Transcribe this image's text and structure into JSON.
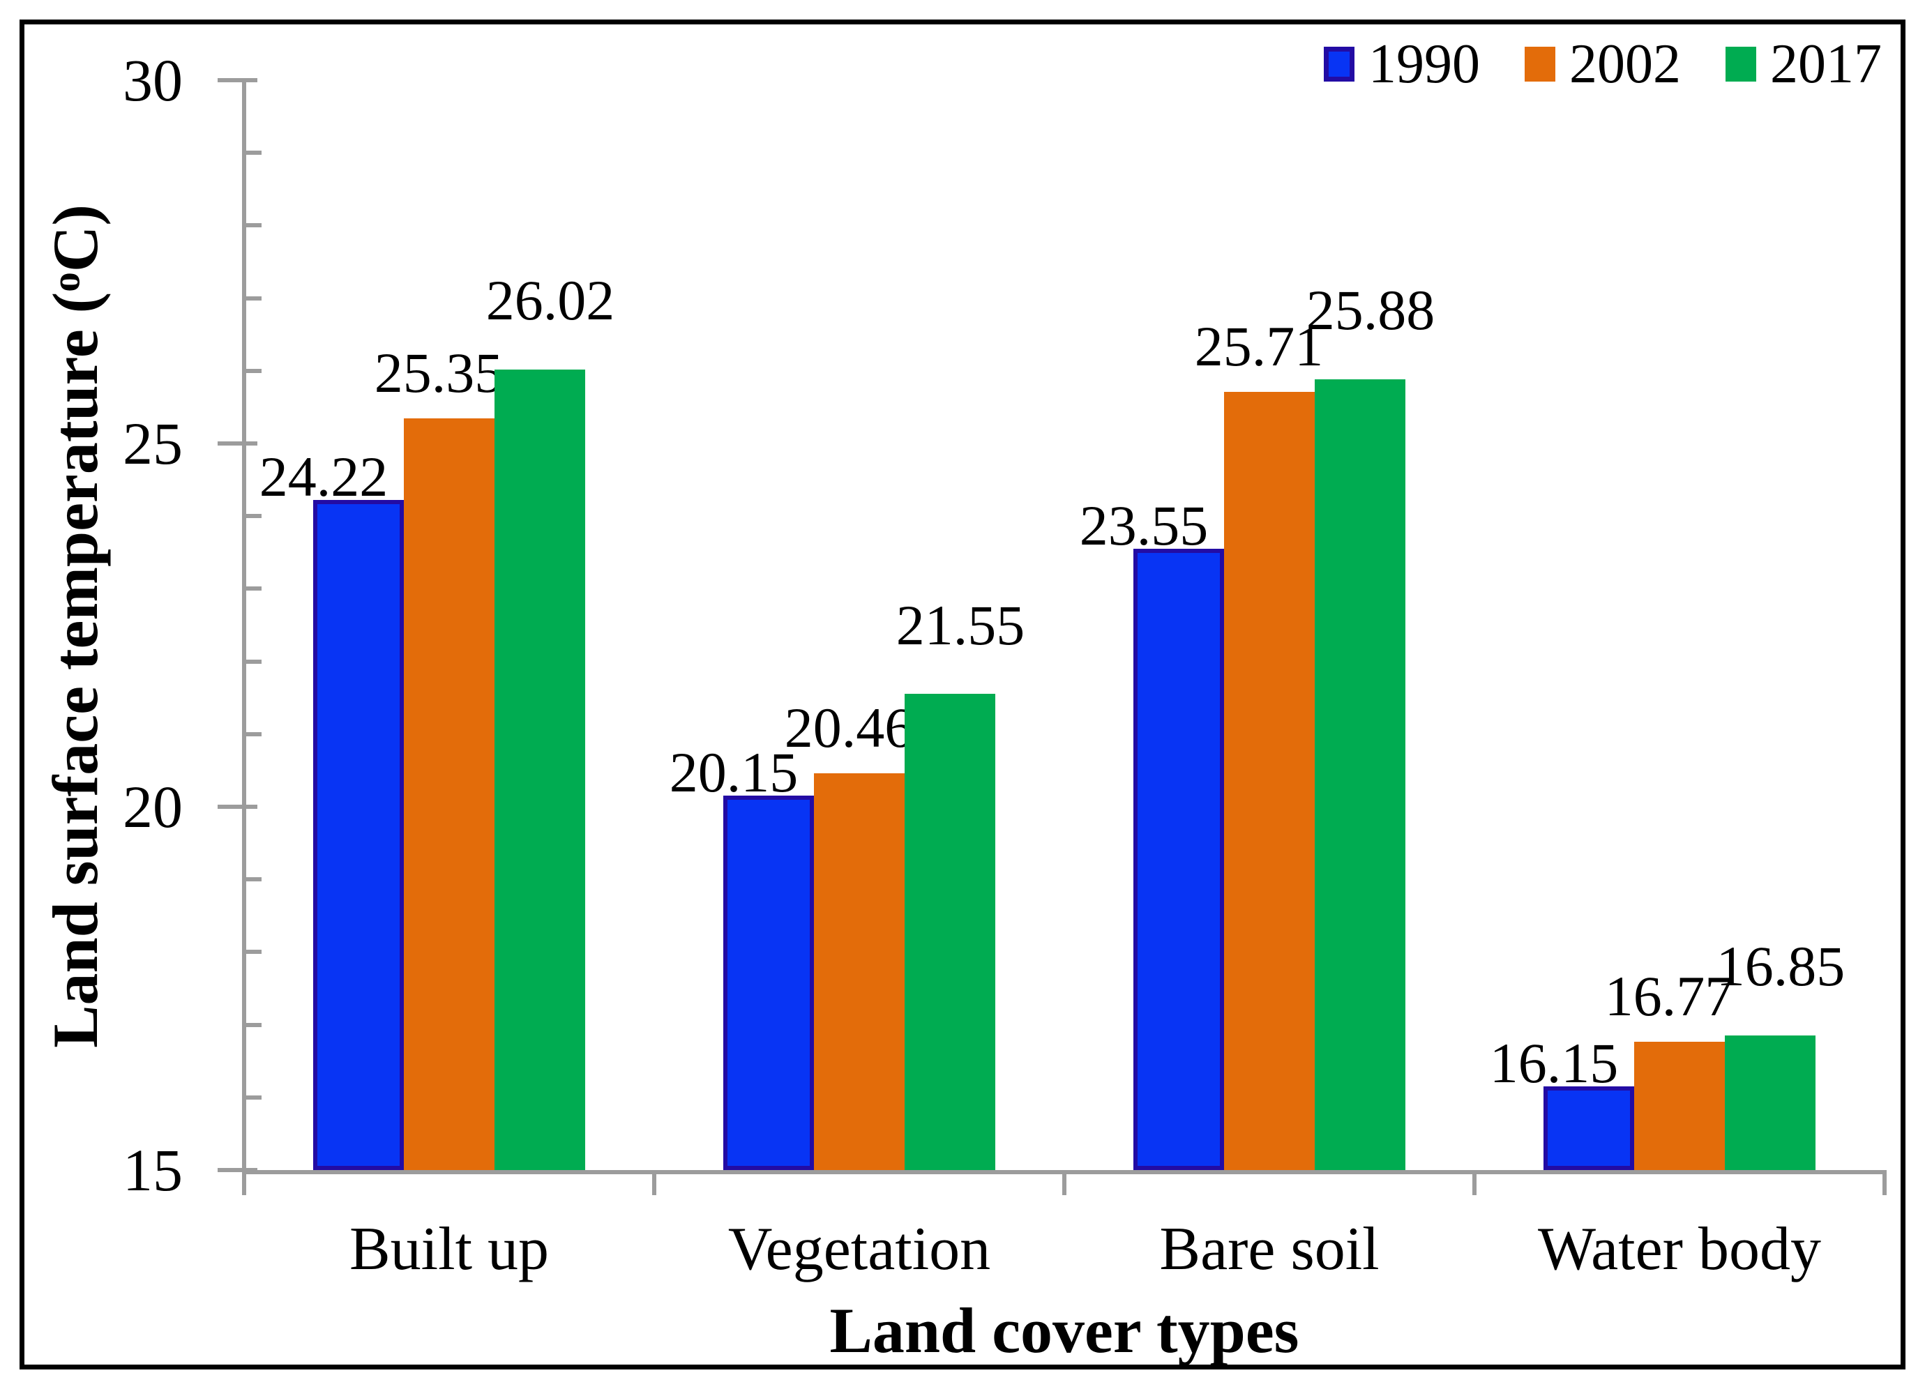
{
  "chart_data": {
    "type": "bar",
    "title": "",
    "categories": [
      "Built up",
      "Vegetation",
      "Bare soil",
      "Water body"
    ],
    "series": [
      {
        "name": "1990",
        "color": "#0834F4",
        "border_color": "#230CA4",
        "values": [
          24.22,
          20.15,
          23.55,
          16.15
        ]
      },
      {
        "name": "2002",
        "color": "#E36C0A",
        "border_color": null,
        "values": [
          25.35,
          20.46,
          25.71,
          16.77
        ]
      },
      {
        "name": "2017",
        "color": "#00AC51",
        "border_color": null,
        "values": [
          26.02,
          21.55,
          25.88,
          16.85
        ]
      }
    ],
    "data_labels": [
      [
        "24.22",
        "20.15",
        "23.55",
        "16.15"
      ],
      [
        "25.35",
        "20.46",
        "25.71",
        "16.77"
      ],
      [
        "26.02",
        "21.55",
        "25.88",
        "16.85"
      ]
    ],
    "xlabel": "Land cover types",
    "ylabel": {
      "prefix": "Land surface temperature (",
      "sup": "o",
      "suffix": "C)"
    },
    "ylim": [
      15,
      30
    ],
    "y_major_ticks": [
      15,
      20,
      25,
      30
    ],
    "y_tick_labels": [
      "15",
      "20",
      "25",
      "30"
    ],
    "y_minor_unit": 1,
    "grid": false,
    "legend_position": "top-right",
    "colors": {
      "axis": "#9C9C9C",
      "text": "#000000",
      "frame": "#000000",
      "background": "#FFFFFF"
    }
  }
}
